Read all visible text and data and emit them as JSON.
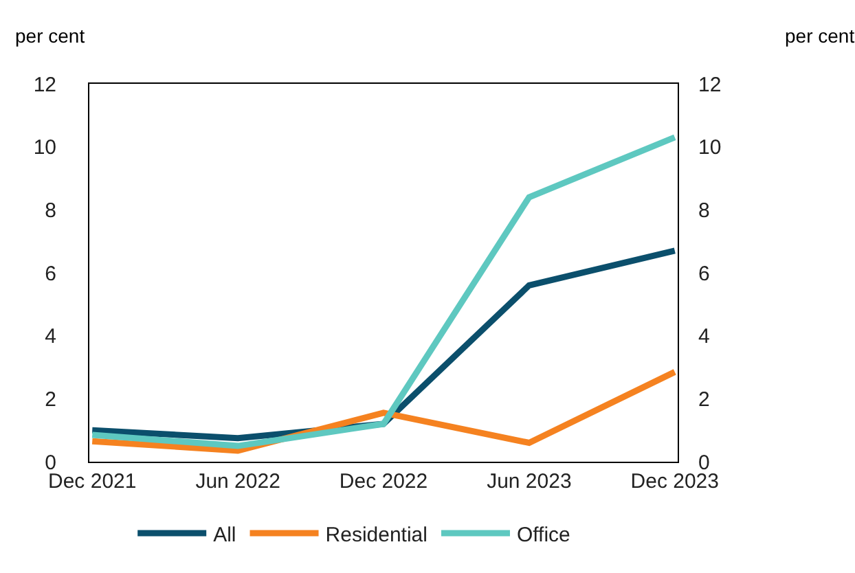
{
  "chart_data": {
    "type": "line",
    "ylabel": "per cent",
    "y2label": "per cent",
    "categories": [
      "Dec 2021",
      "Jun 2022",
      "Dec 2022",
      "Jun 2023",
      "Dec 2023"
    ],
    "series": [
      {
        "name": "All",
        "color": "#0b4f6c",
        "values": [
          1.0,
          0.75,
          1.2,
          5.6,
          6.7
        ]
      },
      {
        "name": "Residential",
        "color": "#f58220",
        "values": [
          0.65,
          0.35,
          1.55,
          0.6,
          2.85
        ]
      },
      {
        "name": "Office",
        "color": "#5ec8c0",
        "values": [
          0.85,
          0.5,
          1.2,
          8.4,
          10.3
        ]
      }
    ],
    "ylim": [
      0,
      12
    ],
    "yticks": [
      0,
      2,
      4,
      6,
      8,
      10,
      12
    ],
    "y2lim": [
      0,
      12
    ],
    "y2ticks": [
      0,
      2,
      4,
      6,
      8,
      10,
      12
    ],
    "grid": false,
    "legend": "bottom",
    "marker": "none",
    "line_style": "solid"
  }
}
